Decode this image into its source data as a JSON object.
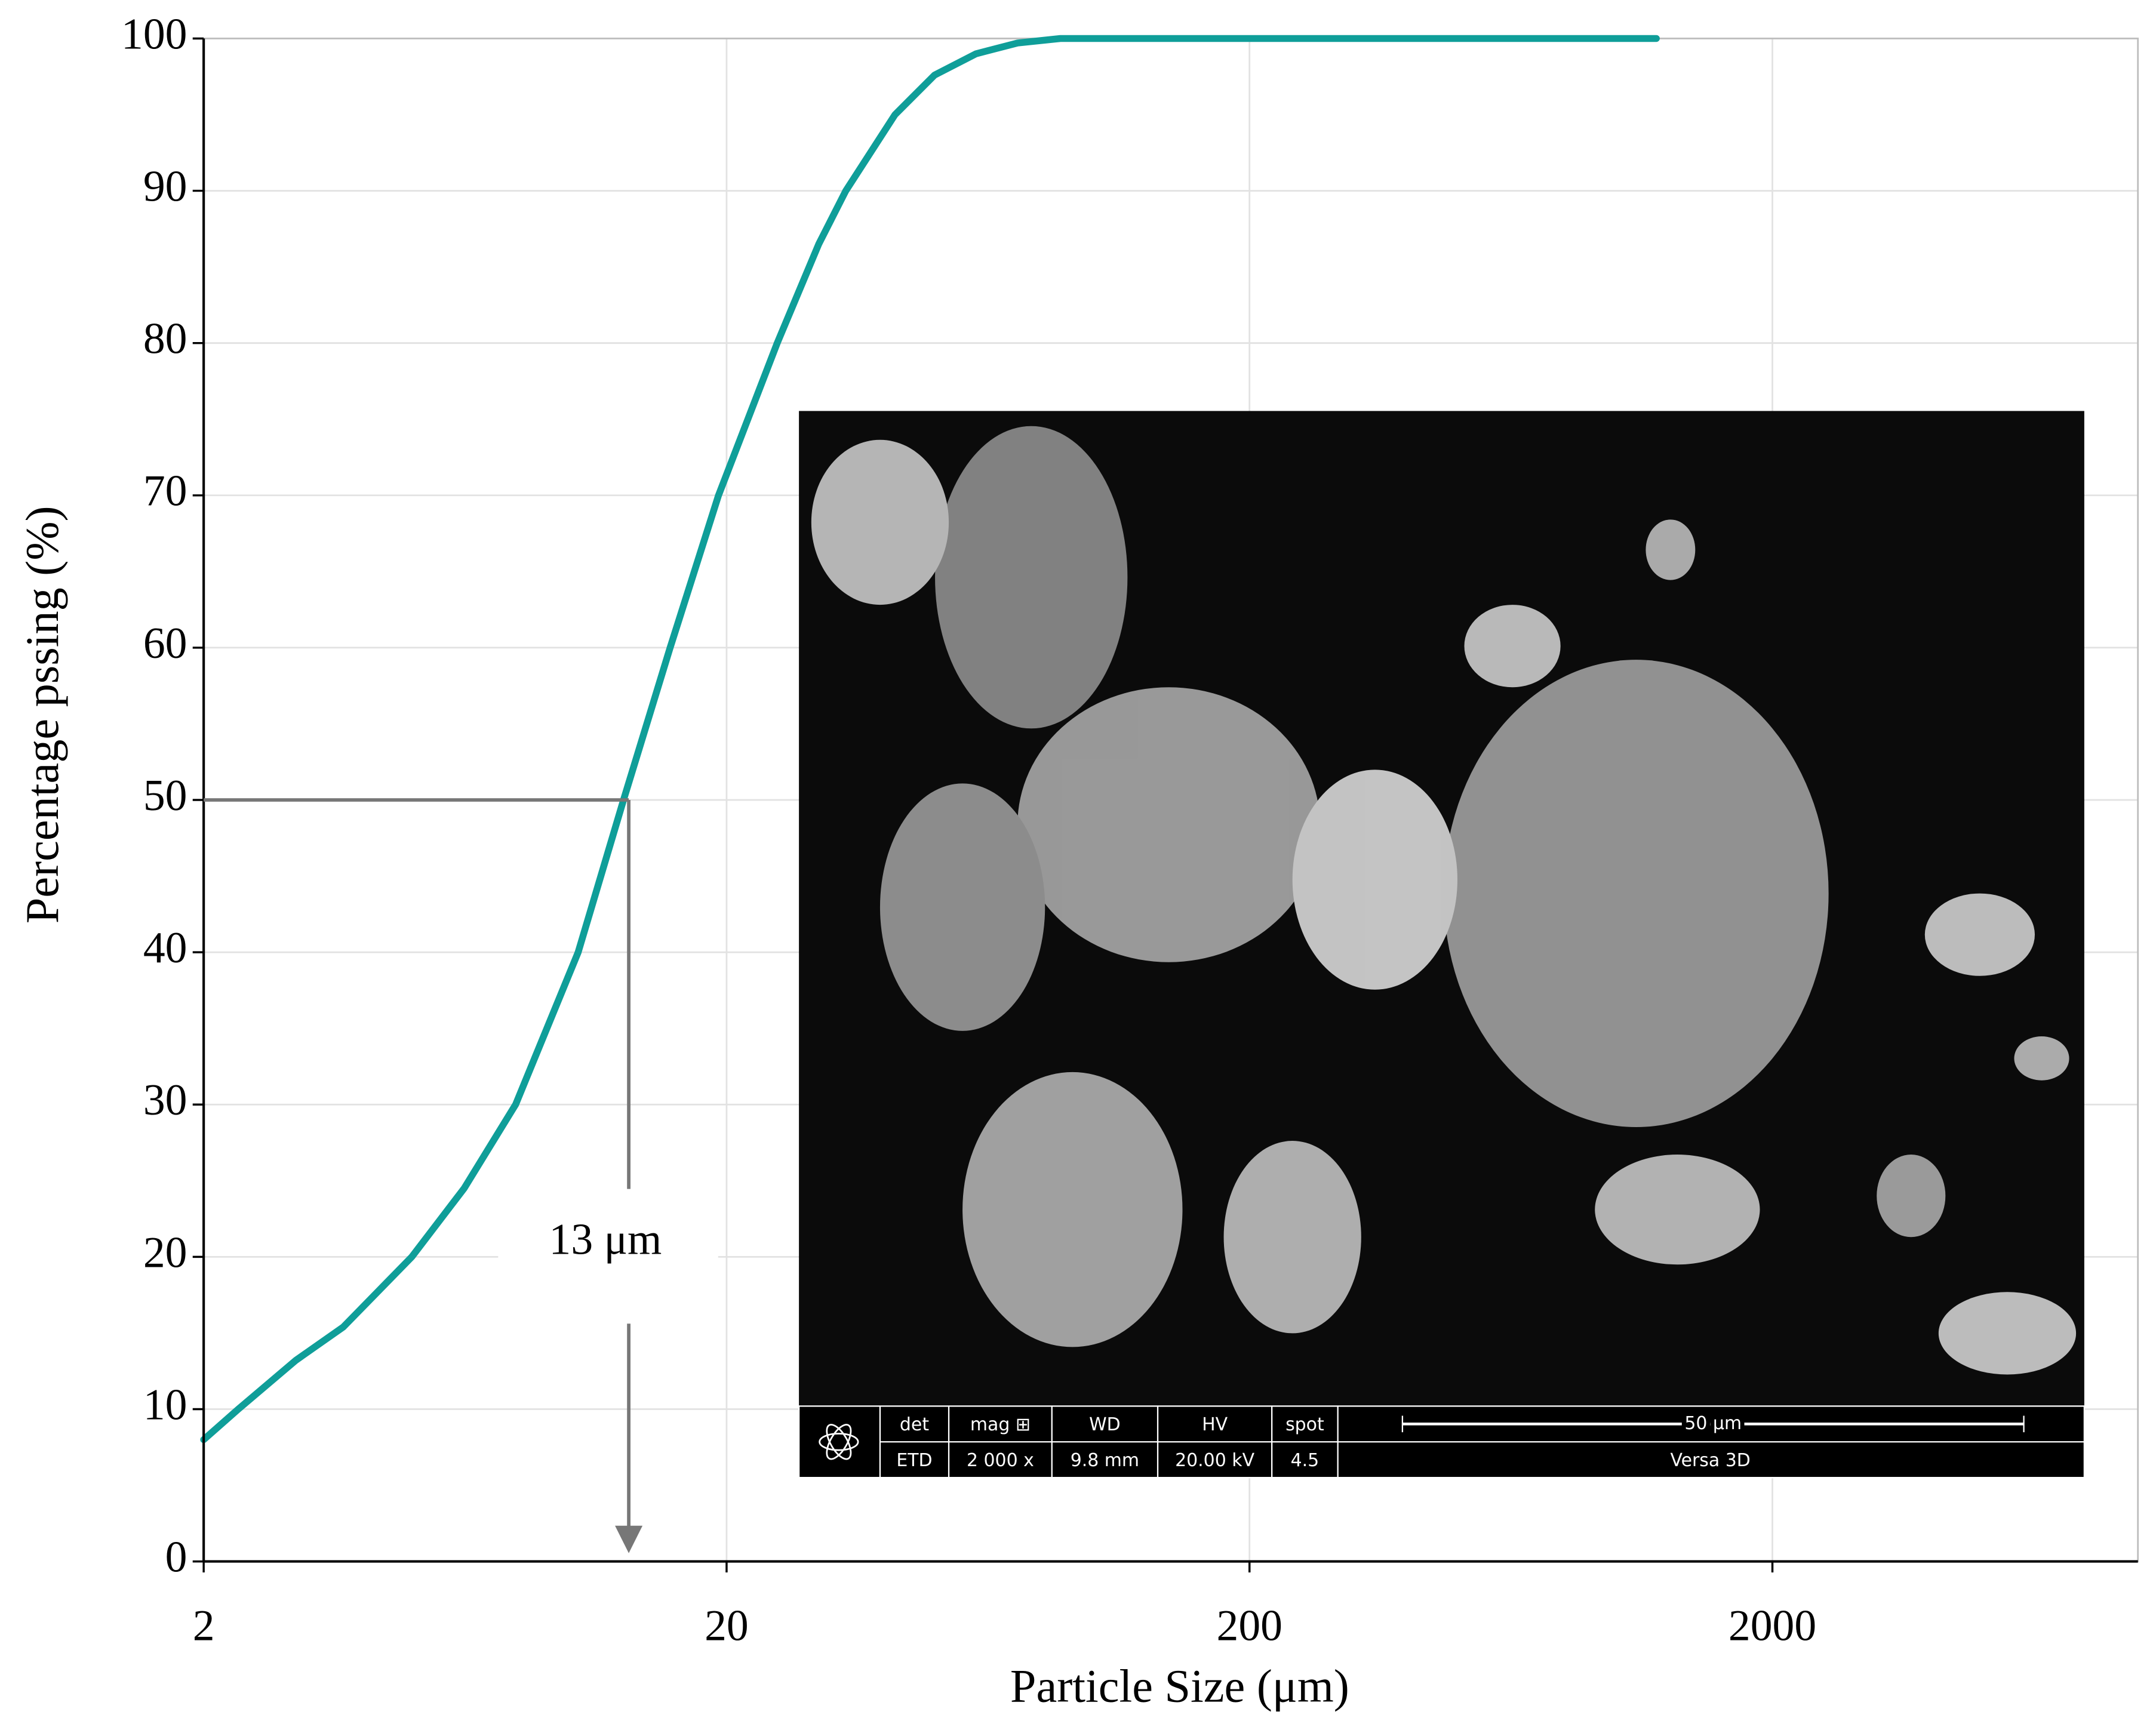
{
  "chart_data": {
    "type": "line",
    "x_label": "Particle Size (μm)",
    "y_label": "Percentage pssing (%)",
    "x_log": true,
    "grid": true,
    "xlim": [
      2,
      10000
    ],
    "xticks": [
      2,
      20,
      200,
      2000
    ],
    "ylim": [
      0,
      100
    ],
    "yticks": [
      0,
      10,
      20,
      30,
      40,
      50,
      60,
      70,
      80,
      90,
      100
    ],
    "series": [
      {
        "color": "#0f9e99",
        "x": [
          2,
          2.33,
          3,
          3.7,
          5,
          6.3,
          7.9,
          10.4,
          12.7,
          15.6,
          19.3,
          25,
          30,
          33.8,
          42,
          50,
          60,
          72,
          87,
          200,
          600,
          1200
        ],
        "values": [
          8,
          10,
          13.2,
          15.4,
          20,
          24.5,
          30,
          40,
          50,
          60,
          70,
          80,
          86.5,
          90,
          95,
          97.6,
          99,
          99.7,
          100,
          100,
          100,
          100
        ]
      }
    ],
    "annotation": {
      "text": "13 μm",
      "x": 13,
      "y": 50
    },
    "inset": {
      "labels": [
        [
          "det",
          "ETD"
        ],
        [
          "mag ⊞",
          "2 000 x"
        ],
        [
          "WD",
          "9.8 mm"
        ],
        [
          "HV",
          "20.00 kV"
        ],
        [
          "spot",
          "4.5"
        ]
      ],
      "scale_label": "50 μm",
      "instrument": "Versa 3D"
    }
  }
}
